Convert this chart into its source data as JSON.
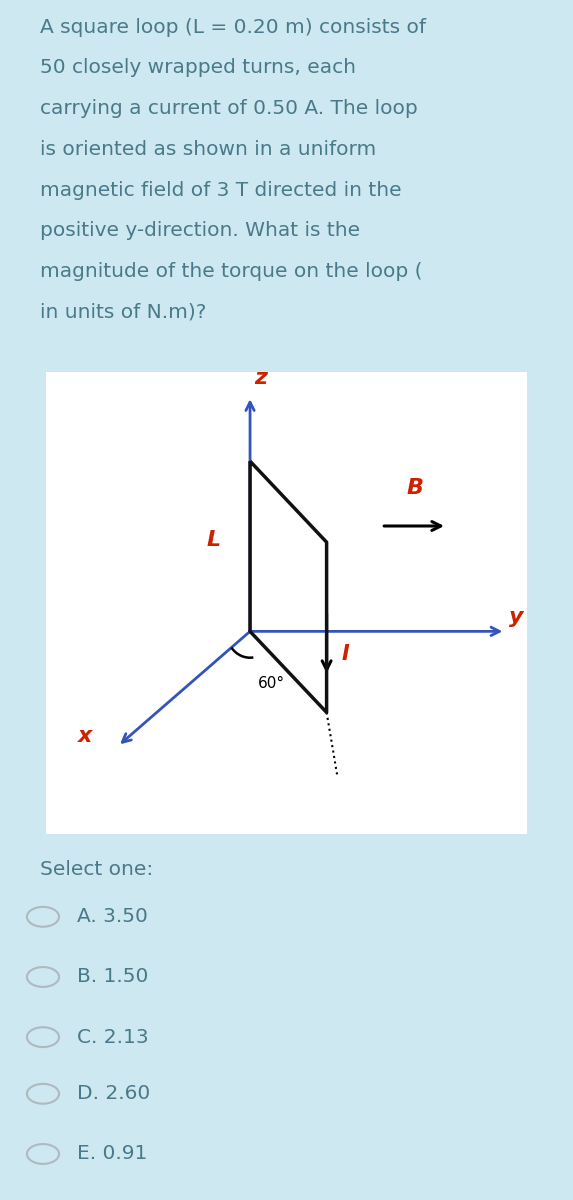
{
  "bg_color": "#cde8f0",
  "question_text_lines": [
    "A square loop (L = 0.20 m) consists of",
    "50 closely wrapped turns, each",
    "carrying a current of 0.50 A. The loop",
    "is oriented as shown in a uniform",
    "magnetic field of 3 T directed in the",
    "positive y-direction. What is the",
    "magnitude of the torque on the loop (",
    "in units of N.m)?"
  ],
  "question_color": "#4a7a8a",
  "question_fontsize": 14.5,
  "diagram_bg": "#ffffff",
  "axis_color": "#3355bb",
  "loop_color": "#111111",
  "label_color": "#cc2200",
  "B_arrow_color": "#111111",
  "select_text": "Select one:",
  "options": [
    "Ä. 3.50",
    "B. 1.50",
    "C. 2.13",
    "D. 2.60",
    "E. 0.91"
  ],
  "option_labels": [
    "A. 3.50",
    "B. 1.50",
    "C. 2.13",
    "D. 2.60",
    "E. 0.91"
  ],
  "option_color": "#4a7a8a",
  "option_fontsize": 14.5,
  "radio_color": "#b0b8c0"
}
